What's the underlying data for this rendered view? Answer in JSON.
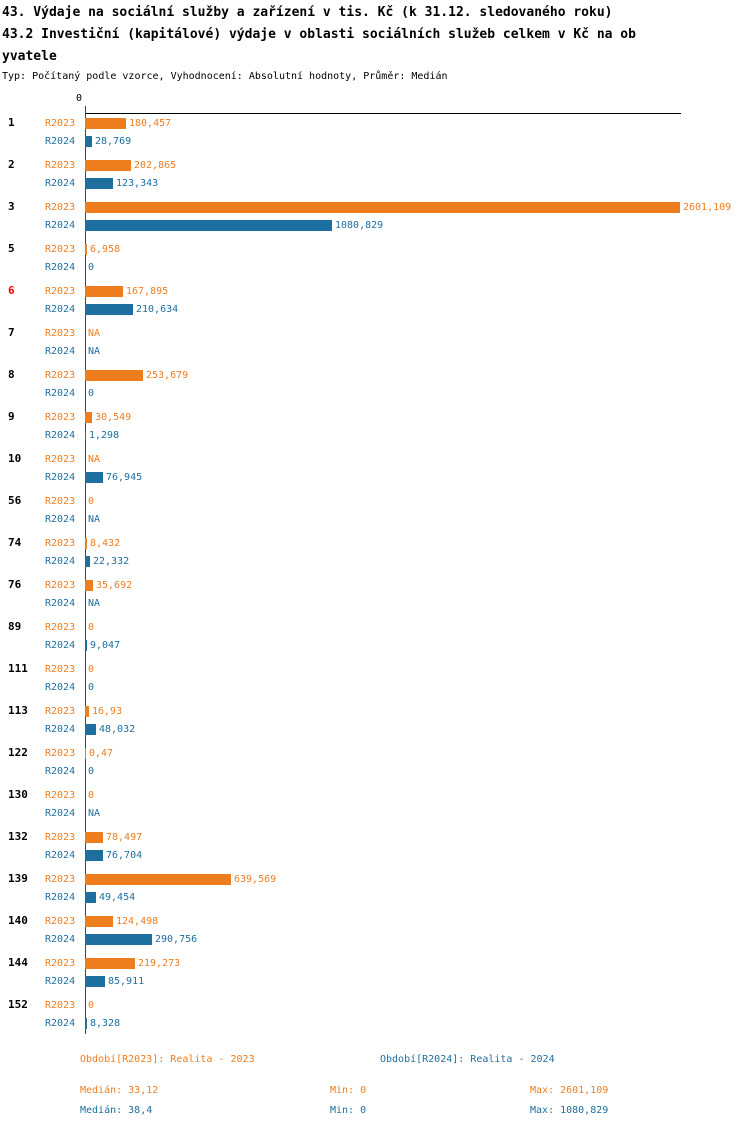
{
  "header": {
    "title": "43. Výdaje na sociální služby a zařízení v tis. Kč (k 31.12. sledovaného roku)",
    "subtitle_line1": "43.2 Investiční (kapitálové) výdaje v oblasti sociálních služeb celkem v Kč na ob",
    "subtitle_line2": "yvatele",
    "meta": "Typ: Počítaný podle vzorce, Vyhodnocení: Absolutní hodnoty, Průměr: Medián"
  },
  "chart_data": {
    "type": "bar",
    "orientation": "horizontal",
    "value_axis": {
      "zero_label": "0",
      "min": 0,
      "max": 2601.109
    },
    "highlight_color": "#ff0000",
    "series": [
      {
        "key": "r2023",
        "name": "R2023",
        "color": "#ee7d1d",
        "period_label": "Období[R2023]: Realita - 2023",
        "median": "Medián: 33,12",
        "min": "Min: 0",
        "max": "Max: 2601,109"
      },
      {
        "key": "r2024",
        "name": "R2024",
        "color": "#1d6f9f",
        "period_label": "Období[R2024]: Realita - 2024",
        "median": "Medián: 38,4",
        "min": "Min: 0",
        "max": "Max: 1080,829"
      }
    ],
    "categories": [
      {
        "id": "1",
        "highlight": false,
        "r2023": {
          "value": 180.457,
          "label": "180,457"
        },
        "r2024": {
          "value": 28.769,
          "label": "28,769"
        }
      },
      {
        "id": "2",
        "highlight": false,
        "r2023": {
          "value": 202.865,
          "label": "202,865"
        },
        "r2024": {
          "value": 123.343,
          "label": "123,343"
        }
      },
      {
        "id": "3",
        "highlight": false,
        "r2023": {
          "value": 2601.109,
          "label": "2601,109"
        },
        "r2024": {
          "value": 1080.829,
          "label": "1080,829"
        }
      },
      {
        "id": "5",
        "highlight": false,
        "r2023": {
          "value": 6.958,
          "label": "6,958"
        },
        "r2024": {
          "value": 0,
          "label": "0"
        }
      },
      {
        "id": "6",
        "highlight": true,
        "r2023": {
          "value": 167.895,
          "label": "167,895"
        },
        "r2024": {
          "value": 210.634,
          "label": "210,634"
        }
      },
      {
        "id": "7",
        "highlight": false,
        "r2023": {
          "value": null,
          "label": "NA"
        },
        "r2024": {
          "value": null,
          "label": "NA"
        }
      },
      {
        "id": "8",
        "highlight": false,
        "r2023": {
          "value": 253.679,
          "label": "253,679"
        },
        "r2024": {
          "value": 0,
          "label": "0"
        }
      },
      {
        "id": "9",
        "highlight": false,
        "r2023": {
          "value": 30.549,
          "label": "30,549"
        },
        "r2024": {
          "value": 1.298,
          "label": "1,298"
        }
      },
      {
        "id": "10",
        "highlight": false,
        "r2023": {
          "value": null,
          "label": "NA"
        },
        "r2024": {
          "value": 76.945,
          "label": "76,945"
        }
      },
      {
        "id": "56",
        "highlight": false,
        "r2023": {
          "value": 0,
          "label": "0"
        },
        "r2024": {
          "value": null,
          "label": "NA"
        }
      },
      {
        "id": "74",
        "highlight": false,
        "r2023": {
          "value": 8.432,
          "label": "8,432"
        },
        "r2024": {
          "value": 22.332,
          "label": "22,332"
        }
      },
      {
        "id": "76",
        "highlight": false,
        "r2023": {
          "value": 35.692,
          "label": "35,692"
        },
        "r2024": {
          "value": null,
          "label": "NA"
        }
      },
      {
        "id": "89",
        "highlight": false,
        "r2023": {
          "value": 0,
          "label": "0"
        },
        "r2024": {
          "value": 9.047,
          "label": "9,047"
        }
      },
      {
        "id": "111",
        "highlight": false,
        "r2023": {
          "value": 0,
          "label": "0"
        },
        "r2024": {
          "value": 0,
          "label": "0"
        }
      },
      {
        "id": "113",
        "highlight": false,
        "r2023": {
          "value": 16.93,
          "label": "16,93"
        },
        "r2024": {
          "value": 48.032,
          "label": "48,032"
        }
      },
      {
        "id": "122",
        "highlight": false,
        "r2023": {
          "value": 0.47,
          "label": "0,47"
        },
        "r2024": {
          "value": 0,
          "label": "0"
        }
      },
      {
        "id": "130",
        "highlight": false,
        "r2023": {
          "value": 0,
          "label": "0"
        },
        "r2024": {
          "value": null,
          "label": "NA"
        }
      },
      {
        "id": "132",
        "highlight": false,
        "r2023": {
          "value": 78.497,
          "label": "78,497"
        },
        "r2024": {
          "value": 76.704,
          "label": "76,704"
        }
      },
      {
        "id": "139",
        "highlight": false,
        "r2023": {
          "value": 639.569,
          "label": "639,569"
        },
        "r2024": {
          "value": 49.454,
          "label": "49,454"
        }
      },
      {
        "id": "140",
        "highlight": false,
        "r2023": {
          "value": 124.498,
          "label": "124,498"
        },
        "r2024": {
          "value": 290.756,
          "label": "290,756"
        }
      },
      {
        "id": "144",
        "highlight": false,
        "r2023": {
          "value": 219.273,
          "label": "219,273"
        },
        "r2024": {
          "value": 85.911,
          "label": "85,911"
        }
      },
      {
        "id": "152",
        "highlight": false,
        "r2023": {
          "value": 0,
          "label": "0"
        },
        "r2024": {
          "value": 8.328,
          "label": "8,328"
        }
      }
    ]
  }
}
